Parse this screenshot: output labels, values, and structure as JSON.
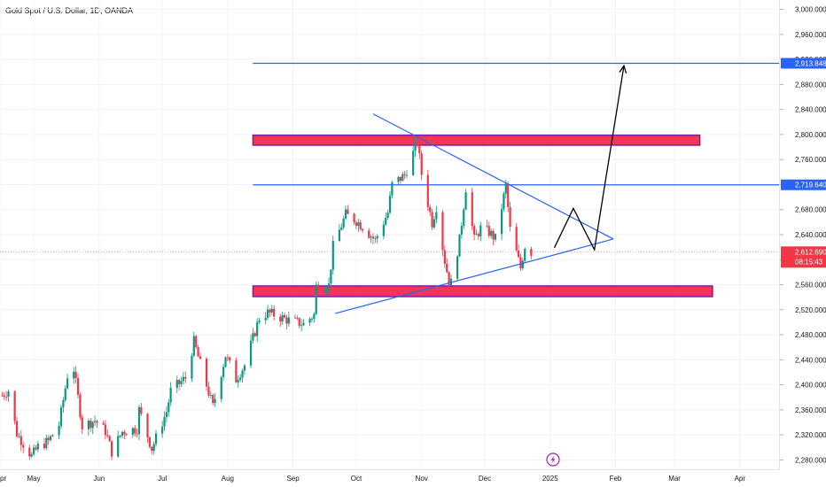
{
  "header": {
    "title": "Gold Spot / U.S. Dollar, 1D, OANDA"
  },
  "colors": {
    "up": "#089981",
    "down": "#f23645",
    "trendline": "#2962ff",
    "zone_fill": "#f23655",
    "zone_border": "#7b1fa2",
    "drawing": "#000000",
    "price_line": "#f23645",
    "grid": "#f0f3fa",
    "axis_text": "#131722"
  },
  "chart_data": {
    "type": "candlestick",
    "title": "Gold Spot / U.S. Dollar, 1D, OANDA",
    "ylim": [
      2265,
      3015
    ],
    "x_range": [
      "2024-04-15",
      "2025-04-20"
    ],
    "y_ticks": [
      2280,
      2320,
      2360,
      2400,
      2440,
      2480,
      2520,
      2560,
      2600,
      2640,
      2680,
      2720,
      2760,
      2800,
      2840,
      2880,
      2920,
      2960,
      3000
    ],
    "y_tick_labels": [
      "2,280.000",
      "2,320.000",
      "2,360.000",
      "2,400.000",
      "2,440.000",
      "2,480.000",
      "2,520.000",
      "2,560.000",
      "2,600.000",
      "2,640.000",
      "2,680.000",
      "2,720.000",
      "2,760.000",
      "2,800.000",
      "2,840.000",
      "2,880.000",
      "2,920.000",
      "2,960.000",
      "3,000.000"
    ],
    "x_ticks": [
      {
        "label": "pr",
        "date": "2024-04-15"
      },
      {
        "label": "May",
        "date": "2024-05-01"
      },
      {
        "label": "Jun",
        "date": "2024-06-01"
      },
      {
        "label": "Jul",
        "date": "2024-07-01"
      },
      {
        "label": "Aug",
        "date": "2024-08-01"
      },
      {
        "label": "Sep",
        "date": "2024-09-01"
      },
      {
        "label": "Oct",
        "date": "2024-10-01"
      },
      {
        "label": "Nov",
        "date": "2024-11-01"
      },
      {
        "label": "Dec",
        "date": "2024-12-01"
      },
      {
        "label": "2025",
        "date": "2025-01-01"
      },
      {
        "label": "Feb",
        "date": "2025-02-01"
      },
      {
        "label": "Mar",
        "date": "2025-03-01"
      },
      {
        "label": "Apr",
        "date": "2025-04-01"
      }
    ],
    "close_path": [
      [
        "2024-04-16",
        2383
      ],
      [
        "2024-04-19",
        2391
      ],
      [
        "2024-04-23",
        2322
      ],
      [
        "2024-04-30",
        2286
      ],
      [
        "2024-05-03",
        2301
      ],
      [
        "2024-05-08",
        2310
      ],
      [
        "2024-05-13",
        2336
      ],
      [
        "2024-05-17",
        2415
      ],
      [
        "2024-05-20",
        2425
      ],
      [
        "2024-05-24",
        2334
      ],
      [
        "2024-05-30",
        2343
      ],
      [
        "2024-06-04",
        2326
      ],
      [
        "2024-06-07",
        2293
      ],
      [
        "2024-06-12",
        2325
      ],
      [
        "2024-06-19",
        2330
      ],
      [
        "2024-06-20",
        2360
      ],
      [
        "2024-06-26",
        2298
      ],
      [
        "2024-07-03",
        2357
      ],
      [
        "2024-07-05",
        2390
      ],
      [
        "2024-07-12",
        2411
      ],
      [
        "2024-07-16",
        2469
      ],
      [
        "2024-07-18",
        2445
      ],
      [
        "2024-07-25",
        2365
      ],
      [
        "2024-07-31",
        2447
      ],
      [
        "2024-08-05",
        2409
      ],
      [
        "2024-08-09",
        2431
      ],
      [
        "2024-08-16",
        2507
      ],
      [
        "2024-08-20",
        2515
      ],
      [
        "2024-08-23",
        2512
      ],
      [
        "2024-08-30",
        2503
      ],
      [
        "2024-09-06",
        2497
      ],
      [
        "2024-09-11",
        2512
      ],
      [
        "2024-09-12",
        2557
      ],
      [
        "2024-09-18",
        2559
      ],
      [
        "2024-09-20",
        2621
      ],
      [
        "2024-09-26",
        2672
      ],
      [
        "2024-10-01",
        2662
      ],
      [
        "2024-10-04",
        2653
      ],
      [
        "2024-10-10",
        2631
      ],
      [
        "2024-10-16",
        2675
      ],
      [
        "2024-10-18",
        2720
      ],
      [
        "2024-10-24",
        2735
      ],
      [
        "2024-10-30",
        2788
      ],
      [
        "2024-11-01",
        2737
      ],
      [
        "2024-11-06",
        2659
      ],
      [
        "2024-11-08",
        2685
      ],
      [
        "2024-11-12",
        2598
      ],
      [
        "2024-11-14",
        2566
      ],
      [
        "2024-11-15",
        2563
      ],
      [
        "2024-11-19",
        2631
      ],
      [
        "2024-11-22",
        2715
      ],
      [
        "2024-11-26",
        2632
      ],
      [
        "2024-11-29",
        2650
      ],
      [
        "2024-12-03",
        2644
      ],
      [
        "2024-12-06",
        2633
      ],
      [
        "2024-12-11",
        2718
      ],
      [
        "2024-12-13",
        2648
      ],
      [
        "2024-12-18",
        2587
      ],
      [
        "2024-12-20",
        2622
      ],
      [
        "2024-12-23",
        2612
      ]
    ],
    "annotations": {
      "resistance_zone": {
        "x0": "2024-08-13",
        "x1": "2025-03-13",
        "y0": 2783,
        "y1": 2799
      },
      "support_zone": {
        "x0": "2024-08-13",
        "x1": "2025-03-19",
        "y0": 2541,
        "y1": 2558
      },
      "level_lines": [
        {
          "value": 2913.848,
          "label": "2,913.848",
          "x0": "2024-08-13"
        },
        {
          "value": 2719.64,
          "label": "2,719.640",
          "x0": "2024-08-13"
        }
      ],
      "upper_trendline": [
        [
          "2024-10-09",
          2833
        ],
        [
          "2025-01-31",
          2633
        ]
      ],
      "lower_trendline": [
        [
          "2024-09-21",
          2514
        ],
        [
          "2025-01-31",
          2633
        ]
      ],
      "projected_path": [
        [
          "2025-01-03",
          2619
        ],
        [
          "2025-01-12",
          2682
        ],
        [
          "2025-01-22",
          2616
        ],
        [
          "2025-02-05",
          2910
        ]
      ],
      "current_price": {
        "value": 2612.69,
        "label": "2,612.690",
        "countdown": "08:15:43",
        "from": "2024-04-15"
      }
    }
  }
}
